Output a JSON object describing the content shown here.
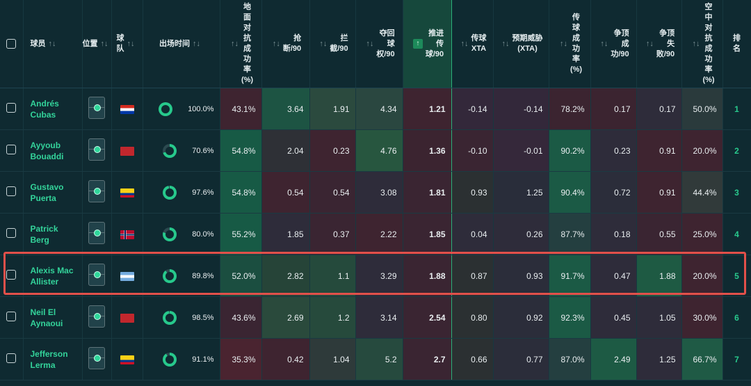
{
  "headers": {
    "player": "球员",
    "position": "位置",
    "team": "球\n队",
    "minutes": "出场时间",
    "ground_duels": "地\n面\n对\n抗\n成\n功\n率\n(%)",
    "tackles": "抢\n断/90",
    "interceptions": "拦\n截/90",
    "recoveries": "夺回\n球\n权/90",
    "progressive_passes": "推进\n传\n球/90",
    "pass_xta": "传球\nXTA",
    "expected_threat": "预期威胁\n(XTA)",
    "pass_accuracy": "传\n球\n成\n功\n率\n(%)",
    "aerial_won": "争顶\n成\n功/90",
    "aerial_lost": "争顶\n失\n败/90",
    "aerial_rate": "空\n中\n对\n抗\n成\n功\n率\n(%)",
    "rank": "排\n名"
  },
  "sort_icon": "↑↓",
  "active_sort_icon": "↑",
  "colors": {
    "accent_green": "#28c98d",
    "highlight_border": "#e2504a",
    "background": "#0f2a31"
  },
  "rows": [
    {
      "name": "Andrés Cubas",
      "flag": "paraguay",
      "minutes_pct": 100,
      "minutes": "100.0%",
      "ground": "43.1%",
      "tackles": "3.64",
      "interceptions": "1.91",
      "recoveries": "4.34",
      "progressive": "1.21",
      "pass_xta": "-0.14",
      "xta": "-0.14",
      "pass_acc": "78.2%",
      "aerial_won": "0.17",
      "aerial_lost": "0.17",
      "aerial_rate": "50.0%",
      "rank": "1"
    },
    {
      "name": "Ayyoub Bouaddi",
      "flag": "morocco",
      "minutes_pct": 70.6,
      "minutes": "70.6%",
      "ground": "54.8%",
      "tackles": "2.04",
      "interceptions": "0.23",
      "recoveries": "4.76",
      "progressive": "1.36",
      "pass_xta": "-0.10",
      "xta": "-0.01",
      "pass_acc": "90.2%",
      "aerial_won": "0.23",
      "aerial_lost": "0.91",
      "aerial_rate": "20.0%",
      "rank": "2"
    },
    {
      "name": "Gustavo Puerta",
      "flag": "colombia",
      "minutes_pct": 97.6,
      "minutes": "97.6%",
      "ground": "54.8%",
      "tackles": "0.54",
      "interceptions": "0.54",
      "recoveries": "3.08",
      "progressive": "1.81",
      "pass_xta": "0.93",
      "xta": "1.25",
      "pass_acc": "90.4%",
      "aerial_won": "0.72",
      "aerial_lost": "0.91",
      "aerial_rate": "44.4%",
      "rank": "3"
    },
    {
      "name": "Patrick Berg",
      "flag": "norway",
      "minutes_pct": 80,
      "minutes": "80.0%",
      "ground": "55.2%",
      "tackles": "1.85",
      "interceptions": "0.37",
      "recoveries": "2.22",
      "progressive": "1.85",
      "pass_xta": "0.04",
      "xta": "0.26",
      "pass_acc": "87.7%",
      "aerial_won": "0.18",
      "aerial_lost": "0.55",
      "aerial_rate": "25.0%",
      "rank": "4"
    },
    {
      "name": "Alexis Mac Allister",
      "flag": "argentina",
      "minutes_pct": 89.8,
      "minutes": "89.8%",
      "ground": "52.0%",
      "tackles": "2.82",
      "interceptions": "1.1",
      "recoveries": "3.29",
      "progressive": "1.88",
      "pass_xta": "0.87",
      "xta": "0.93",
      "pass_acc": "91.7%",
      "aerial_won": "0.47",
      "aerial_lost": "1.88",
      "aerial_rate": "20.0%",
      "rank": "5"
    },
    {
      "name": "Neil El Aynaoui",
      "flag": "morocco",
      "minutes_pct": 98.5,
      "minutes": "98.5%",
      "ground": "43.6%",
      "tackles": "2.69",
      "interceptions": "1.2",
      "recoveries": "3.14",
      "progressive": "2.54",
      "pass_xta": "0.80",
      "xta": "0.92",
      "pass_acc": "92.3%",
      "aerial_won": "0.45",
      "aerial_lost": "1.05",
      "aerial_rate": "30.0%",
      "rank": "6"
    },
    {
      "name": "Jefferson Lerma",
      "flag": "colombia",
      "minutes_pct": 91.1,
      "minutes": "91.1%",
      "ground": "35.3%",
      "tackles": "0.42",
      "interceptions": "1.04",
      "recoveries": "5.2",
      "progressive": "2.7",
      "pass_xta": "0.66",
      "xta": "0.77",
      "pass_acc": "87.0%",
      "aerial_won": "2.49",
      "aerial_lost": "1.25",
      "aerial_rate": "66.7%",
      "rank": "7"
    }
  ]
}
